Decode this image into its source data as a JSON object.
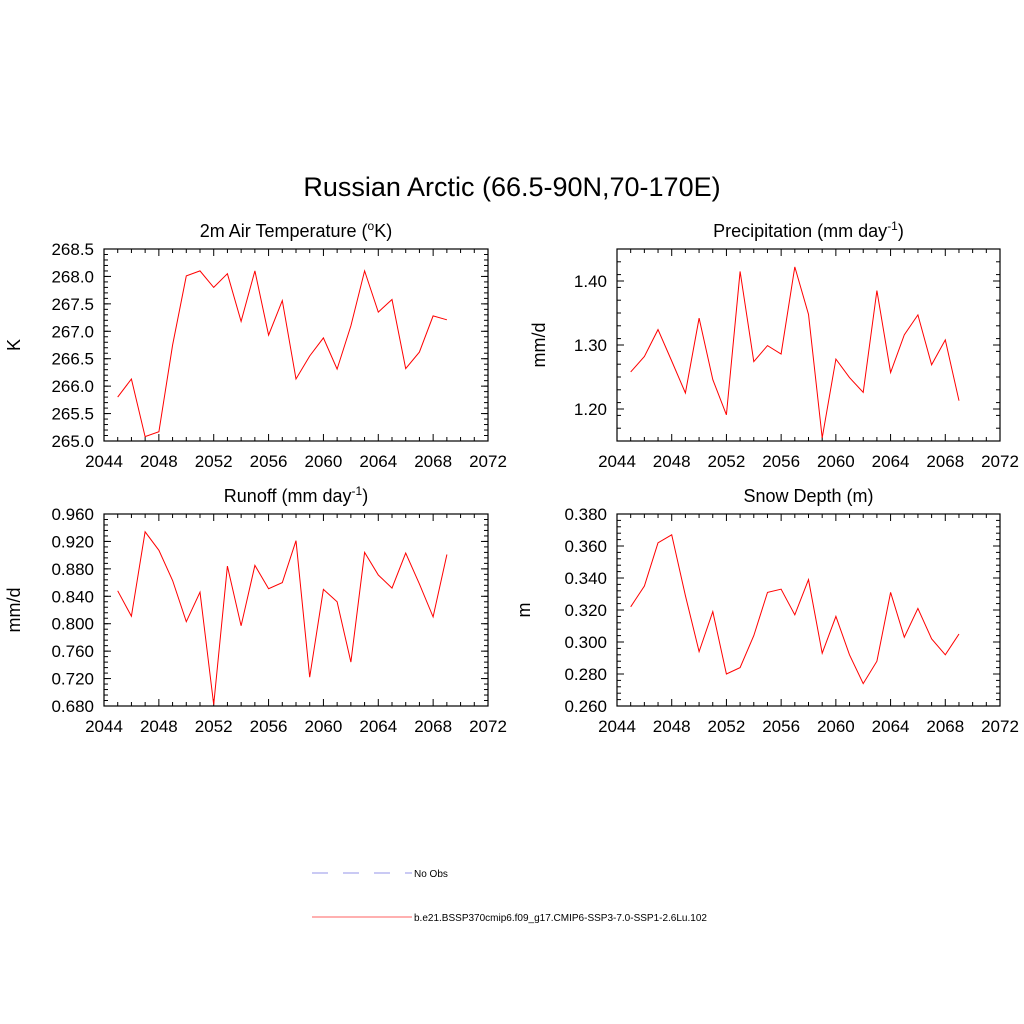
{
  "figure": {
    "title": "Russian Arctic (66.5-90N,70-170E)"
  },
  "legend": {
    "entries": [
      {
        "label": "No Obs",
        "style": "dashed",
        "color": "#aaaaee"
      },
      {
        "label": "b.e21.BSSP370cmip6.f09_g17.CMIP6-SSP3-7.0-SSP1-2.6Lu.102",
        "style": "solid",
        "color": "#ff8080"
      }
    ]
  },
  "chart_data": [
    {
      "type": "line",
      "title": "2m Air Temperature (",
      "title_sup": "o",
      "title_end": "K)",
      "ylabel": "K",
      "xlim": [
        2044,
        2072
      ],
      "ylim": [
        265.0,
        268.5
      ],
      "xticks": [
        "2044",
        "2048",
        "2052",
        "2056",
        "2060",
        "2064",
        "2068",
        "2072"
      ],
      "yticks": [
        "265.0",
        "265.5",
        "266.0",
        "266.5",
        "267.0",
        "267.5",
        "268.0",
        "268.5"
      ],
      "series": [
        {
          "color": "#ff0000",
          "x": [
            2045,
            2046,
            2047,
            2048,
            2049,
            2050,
            2051,
            2052,
            2053,
            2054,
            2055,
            2056,
            2057,
            2058,
            2059,
            2060,
            2061,
            2062,
            2063,
            2064,
            2065,
            2066,
            2067,
            2068,
            2069
          ],
          "y": [
            265.8,
            266.13,
            265.08,
            265.17,
            266.75,
            268.01,
            268.1,
            267.8,
            268.05,
            267.18,
            268.1,
            266.93,
            267.56,
            266.13,
            266.55,
            266.88,
            266.31,
            267.1,
            268.1,
            267.35,
            267.58,
            266.32,
            266.62,
            267.28,
            267.21
          ]
        }
      ]
    },
    {
      "type": "line",
      "title": "Precipitation (mm day",
      "title_sup": "-1",
      "title_end": ")",
      "ylabel": "mm/d",
      "xlim": [
        2044,
        2072
      ],
      "ylim": [
        1.15,
        1.45
      ],
      "xticks": [
        "2044",
        "2048",
        "2052",
        "2056",
        "2060",
        "2064",
        "2068",
        "2072"
      ],
      "yticks": [
        "1.20",
        "1.30",
        "1.40"
      ],
      "series": [
        {
          "color": "#ff0000",
          "x": [
            2045,
            2046,
            2047,
            2048,
            2049,
            2050,
            2051,
            2052,
            2053,
            2054,
            2055,
            2056,
            2057,
            2058,
            2059,
            2060,
            2061,
            2062,
            2063,
            2064,
            2065,
            2066,
            2067,
            2068,
            2069
          ],
          "y": [
            1.258,
            1.282,
            1.324,
            1.275,
            1.225,
            1.342,
            1.246,
            1.191,
            1.415,
            1.274,
            1.299,
            1.286,
            1.422,
            1.348,
            1.155,
            1.278,
            1.249,
            1.226,
            1.385,
            1.257,
            1.316,
            1.347,
            1.269,
            1.308,
            1.213
          ]
        }
      ]
    },
    {
      "type": "line",
      "title": "Runoff (mm day",
      "title_sup": "-1",
      "title_end": ")",
      "ylabel": "mm/d",
      "xlim": [
        2044,
        2072
      ],
      "ylim": [
        0.68,
        0.96
      ],
      "xticks": [
        "2044",
        "2048",
        "2052",
        "2056",
        "2060",
        "2064",
        "2068",
        "2072"
      ],
      "yticks": [
        "0.680",
        "0.720",
        "0.760",
        "0.800",
        "0.840",
        "0.880",
        "0.920",
        "0.960"
      ],
      "series": [
        {
          "color": "#ff0000",
          "x": [
            2045,
            2046,
            2047,
            2048,
            2049,
            2050,
            2051,
            2052,
            2053,
            2054,
            2055,
            2056,
            2057,
            2058,
            2059,
            2060,
            2061,
            2062,
            2063,
            2064,
            2065,
            2066,
            2067,
            2068,
            2069
          ],
          "y": [
            0.848,
            0.811,
            0.934,
            0.907,
            0.863,
            0.803,
            0.846,
            0.682,
            0.884,
            0.797,
            0.885,
            0.851,
            0.86,
            0.921,
            0.722,
            0.85,
            0.832,
            0.744,
            0.904,
            0.871,
            0.852,
            0.903,
            0.858,
            0.81,
            0.901
          ]
        }
      ]
    },
    {
      "type": "line",
      "title": "Snow Depth (m)",
      "title_sup": "",
      "title_end": "",
      "ylabel": "m",
      "xlim": [
        2044,
        2072
      ],
      "ylim": [
        0.26,
        0.38
      ],
      "xticks": [
        "2044",
        "2048",
        "2052",
        "2056",
        "2060",
        "2064",
        "2068",
        "2072"
      ],
      "yticks": [
        "0.260",
        "0.280",
        "0.300",
        "0.320",
        "0.340",
        "0.360",
        "0.380"
      ],
      "series": [
        {
          "color": "#ff0000",
          "x": [
            2045,
            2046,
            2047,
            2048,
            2049,
            2050,
            2051,
            2052,
            2053,
            2054,
            2055,
            2056,
            2057,
            2058,
            2059,
            2060,
            2061,
            2062,
            2063,
            2064,
            2065,
            2066,
            2067,
            2068,
            2069
          ],
          "y": [
            0.322,
            0.335,
            0.362,
            0.367,
            0.329,
            0.294,
            0.319,
            0.28,
            0.284,
            0.304,
            0.331,
            0.333,
            0.317,
            0.339,
            0.293,
            0.316,
            0.292,
            0.274,
            0.288,
            0.331,
            0.303,
            0.321,
            0.302,
            0.292,
            0.305
          ]
        }
      ]
    }
  ]
}
